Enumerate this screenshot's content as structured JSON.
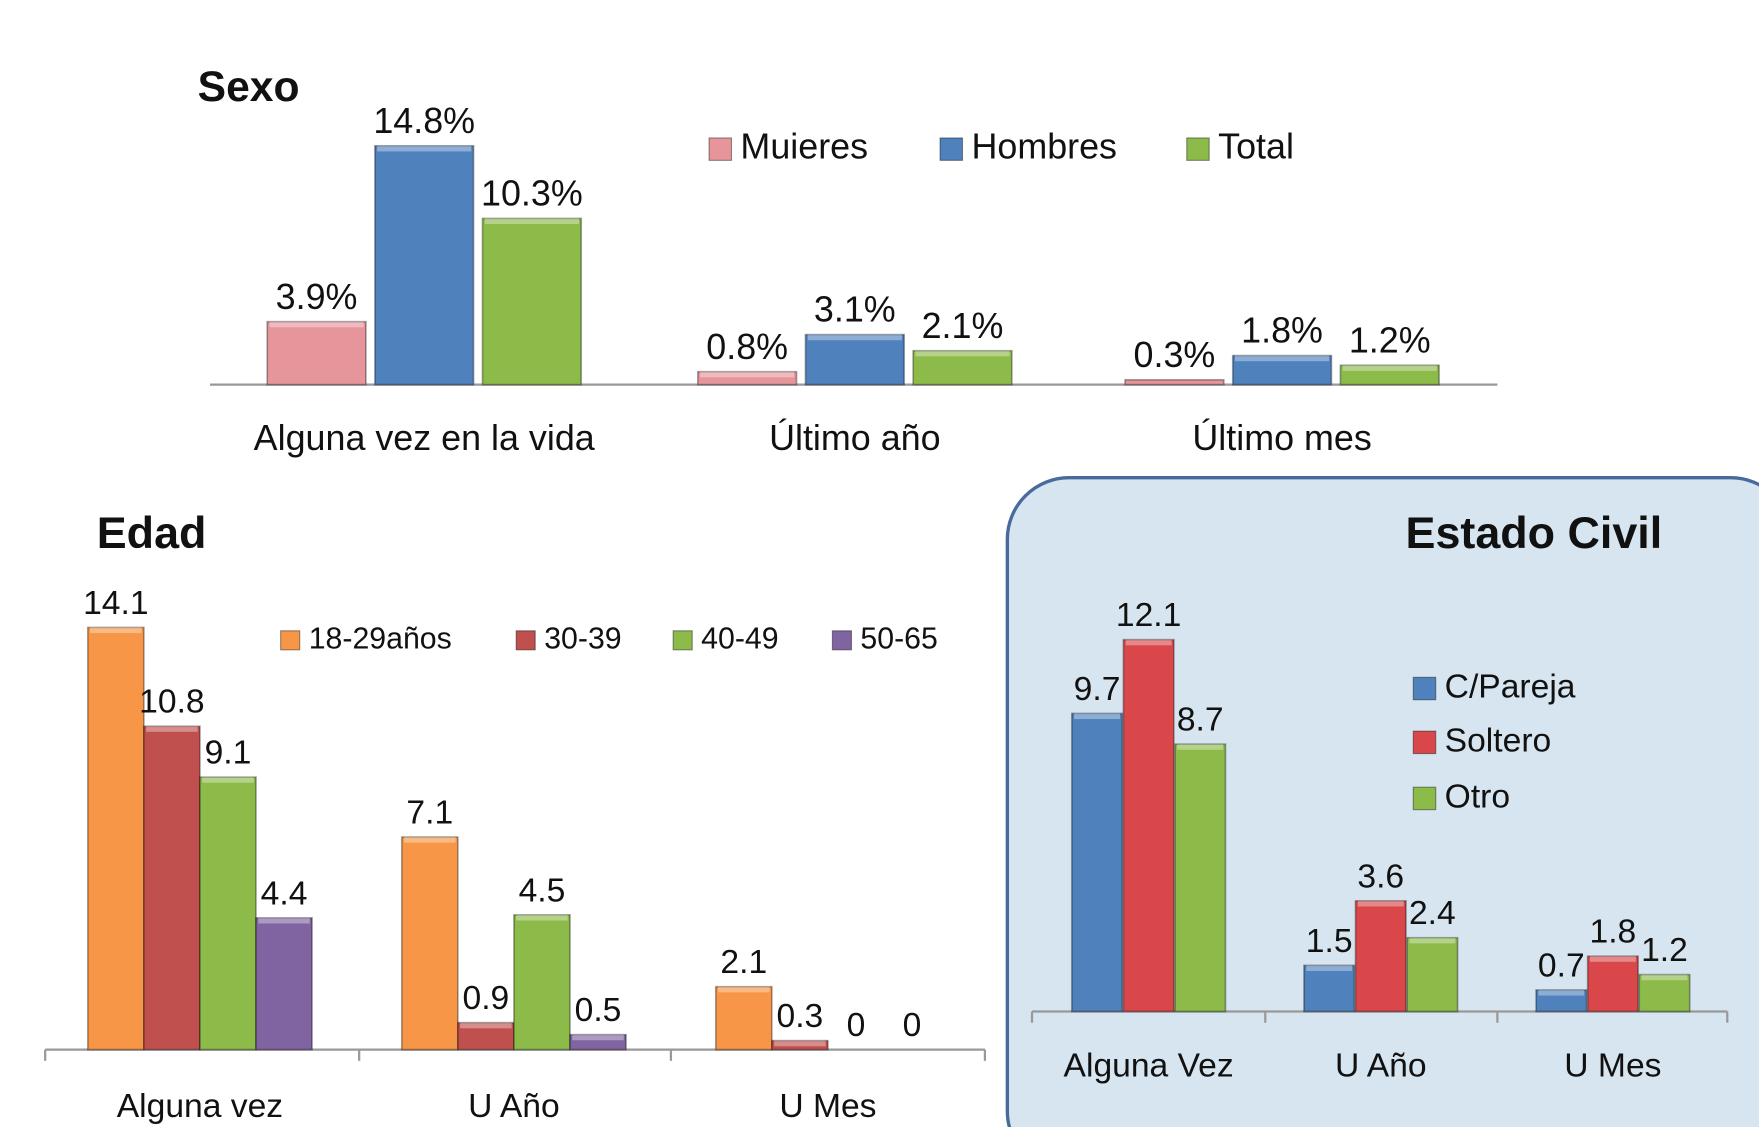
{
  "chart_data": [
    {
      "type": "bar",
      "title": "Sexo",
      "categories": [
        "Alguna vez en la vida",
        "Último año",
        "Último mes"
      ],
      "series": [
        {
          "name": "Muieres",
          "color": "#e6959a",
          "values": [
            3.9,
            0.8,
            0.3
          ],
          "value_labels": [
            "3.9%",
            "0.8%",
            "0.3%"
          ]
        },
        {
          "name": "Hombres",
          "color": "#4f81bd",
          "values": [
            14.8,
            3.1,
            1.8
          ],
          "value_labels": [
            "14.8%",
            "3.1%",
            "1.8%"
          ]
        },
        {
          "name": "Total",
          "color": "#8cbb4a",
          "values": [
            10.3,
            2.1,
            1.2
          ],
          "value_labels": [
            "10.3%",
            "2.1%",
            "1.2%"
          ]
        }
      ]
    },
    {
      "type": "bar",
      "title": "Edad",
      "categories": [
        "Alguna vez",
        "U Año",
        "U Mes"
      ],
      "series": [
        {
          "name": "18-29años",
          "color": "#f79646",
          "values": [
            14.1,
            7.1,
            2.1
          ]
        },
        {
          "name": "30-39",
          "color": "#c0504d",
          "values": [
            10.8,
            0.9,
            0.3
          ]
        },
        {
          "name": "40-49",
          "color": "#8cbb4a",
          "values": [
            9.1,
            4.5,
            0
          ]
        },
        {
          "name": "50-65",
          "color": "#8064a2",
          "values": [
            4.4,
            0.5,
            0
          ]
        }
      ]
    },
    {
      "type": "bar",
      "title": "Estado Civil",
      "categories": [
        "Alguna Vez",
        "U Año",
        "U Mes"
      ],
      "series": [
        {
          "name": "C/Pareja",
          "color": "#4f81bd",
          "values": [
            9.7,
            1.5,
            0.7
          ]
        },
        {
          "name": "Soltero",
          "color": "#d9474a",
          "values": [
            12.1,
            3.6,
            1.8
          ]
        },
        {
          "name": "Otro",
          "color": "#8cbb4a",
          "values": [
            8.7,
            2.4,
            1.2
          ]
        }
      ]
    }
  ]
}
